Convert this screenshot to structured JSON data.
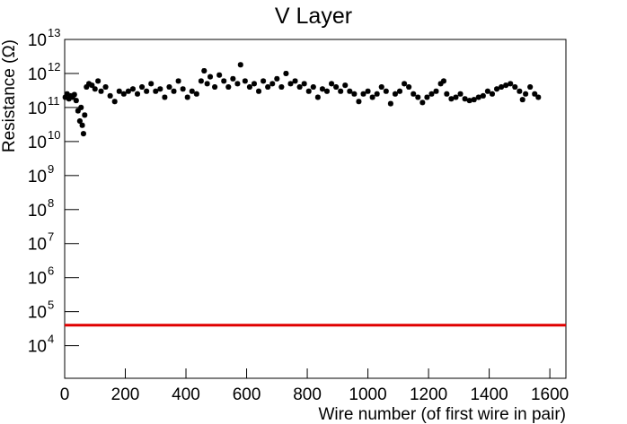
{
  "chart_data": {
    "type": "scatter",
    "title": "V Layer",
    "x_label": "Wire number (of first wire in pair)",
    "y_label": "Resistance (Ω)",
    "log_y": true,
    "color": "#000000",
    "xlim": [
      0,
      1653
    ],
    "ylim": [
      1100,
      10000000000000.0
    ],
    "xticks": [
      0,
      200,
      400,
      600,
      800,
      1000,
      1200,
      1400,
      1600
    ],
    "yticks": [
      {
        "value": 10000.0,
        "label": "10",
        "exponent": "4"
      },
      {
        "value": 100000.0,
        "label": "10",
        "exponent": "5"
      },
      {
        "value": 1000000.0,
        "label": "10",
        "exponent": "6"
      },
      {
        "value": 10000000.0,
        "label": "10",
        "exponent": "7"
      },
      {
        "value": 100000000.0,
        "label": "10",
        "exponent": "8"
      },
      {
        "value": 1000000000.0,
        "label": "10",
        "exponent": "9"
      },
      {
        "value": 10000000000.0,
        "label": "10",
        "exponent": "10"
      },
      {
        "value": 100000000000.0,
        "label": "10",
        "exponent": "11"
      },
      {
        "value": 1000000000000.0,
        "label": "10",
        "exponent": "12"
      },
      {
        "value": 10000000000000.0,
        "label": "10",
        "exponent": "13"
      }
    ],
    "threshold": {
      "value": 40000,
      "color": "#e00000"
    },
    "x": [
      2,
      8,
      14,
      20,
      26,
      32,
      38,
      44,
      50,
      54,
      58,
      62,
      66,
      72,
      80,
      90,
      100,
      110,
      120,
      135,
      150,
      165,
      180,
      195,
      210,
      225,
      240,
      255,
      270,
      285,
      300,
      315,
      330,
      345,
      360,
      375,
      390,
      405,
      420,
      435,
      450,
      460,
      470,
      480,
      495,
      510,
      525,
      540,
      555,
      570,
      580,
      595,
      610,
      625,
      640,
      655,
      670,
      685,
      700,
      715,
      730,
      745,
      760,
      775,
      790,
      805,
      820,
      835,
      850,
      865,
      880,
      895,
      910,
      925,
      940,
      955,
      970,
      985,
      1000,
      1015,
      1030,
      1045,
      1060,
      1075,
      1090,
      1105,
      1120,
      1135,
      1150,
      1165,
      1180,
      1195,
      1210,
      1225,
      1240,
      1250,
      1260,
      1275,
      1290,
      1305,
      1320,
      1335,
      1350,
      1365,
      1380,
      1395,
      1410,
      1425,
      1440,
      1455,
      1470,
      1485,
      1500,
      1510,
      1520,
      1535,
      1550,
      1562
    ],
    "values": [
      200000000000.0,
      250000000000.0,
      180000000000.0,
      220000000000.0,
      200000000000.0,
      240000000000.0,
      160000000000.0,
      80000000000.0,
      40000000000.0,
      100000000000.0,
      30000000000.0,
      17000000000.0,
      60000000000.0,
      400000000000.0,
      500000000000.0,
      450000000000.0,
      350000000000.0,
      600000000000.0,
      300000000000.0,
      400000000000.0,
      220000000000.0,
      150000000000.0,
      300000000000.0,
      250000000000.0,
      300000000000.0,
      350000000000.0,
      250000000000.0,
      400000000000.0,
      300000000000.0,
      500000000000.0,
      300000000000.0,
      350000000000.0,
      200000000000.0,
      400000000000.0,
      300000000000.0,
      600000000000.0,
      350000000000.0,
      200000000000.0,
      300000000000.0,
      250000000000.0,
      600000000000.0,
      1200000000000.0,
      500000000000.0,
      800000000000.0,
      400000000000.0,
      900000000000.0,
      600000000000.0,
      400000000000.0,
      700000000000.0,
      500000000000.0,
      1800000000000.0,
      600000000000.0,
      400000000000.0,
      500000000000.0,
      300000000000.0,
      600000000000.0,
      400000000000.0,
      500000000000.0,
      700000000000.0,
      400000000000.0,
      1000000000000.0,
      500000000000.0,
      600000000000.0,
      400000000000.0,
      500000000000.0,
      300000000000.0,
      400000000000.0,
      200000000000.0,
      350000000000.0,
      300000000000.0,
      500000000000.0,
      400000000000.0,
      300000000000.0,
      450000000000.0,
      300000000000.0,
      250000000000.0,
      150000000000.0,
      250000000000.0,
      300000000000.0,
      200000000000.0,
      250000000000.0,
      400000000000.0,
      300000000000.0,
      130000000000.0,
      250000000000.0,
      300000000000.0,
      500000000000.0,
      400000000000.0,
      250000000000.0,
      200000000000.0,
      140000000000.0,
      200000000000.0,
      250000000000.0,
      300000000000.0,
      500000000000.0,
      600000000000.0,
      250000000000.0,
      180000000000.0,
      200000000000.0,
      250000000000.0,
      180000000000.0,
      160000000000.0,
      170000000000.0,
      200000000000.0,
      220000000000.0,
      300000000000.0,
      250000000000.0,
      350000000000.0,
      400000000000.0,
      450000000000.0,
      500000000000.0,
      400000000000.0,
      300000000000.0,
      170000000000.0,
      250000000000.0,
      400000000000.0,
      250000000000.0,
      200000000000.0
    ]
  }
}
